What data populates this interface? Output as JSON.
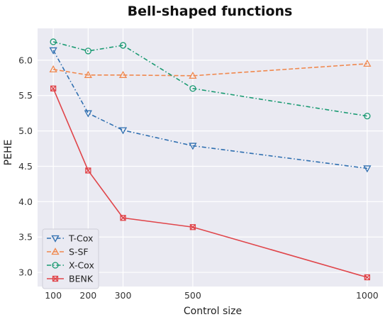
{
  "chart_data": {
    "type": "line",
    "title": "Bell-shaped functions",
    "xlabel": "Control size",
    "ylabel": "PEHE",
    "x": [
      100,
      200,
      300,
      500,
      1000
    ],
    "xticks": [
      100,
      200,
      300,
      500,
      1000
    ],
    "yticks": [
      3.0,
      3.5,
      4.0,
      4.5,
      5.0,
      5.5,
      6.0
    ],
    "xlim": [
      55,
      1045
    ],
    "ylim": [
      2.8,
      6.45
    ],
    "grid": true,
    "legend_position": "bottom-left",
    "background": "#eaeaf2",
    "series": [
      {
        "name": "T-Cox",
        "values": [
          6.14,
          5.25,
          5.01,
          4.79,
          4.47
        ],
        "color": "#2f6fb0",
        "dash": "dashdot",
        "marker": "triangle-down"
      },
      {
        "name": "S-SF",
        "values": [
          5.87,
          5.79,
          5.79,
          5.78,
          5.95
        ],
        "color": "#f0884e",
        "dash": "dashed",
        "marker": "triangle-up"
      },
      {
        "name": "X-Cox",
        "values": [
          6.26,
          6.13,
          6.21,
          5.6,
          5.21
        ],
        "color": "#1a9a72",
        "dash": "dashdot",
        "marker": "circle"
      },
      {
        "name": "BENK",
        "values": [
          5.6,
          4.44,
          3.77,
          3.64,
          2.93
        ],
        "color": "#e0454a",
        "dash": "solid",
        "marker": "x-box"
      }
    ]
  }
}
